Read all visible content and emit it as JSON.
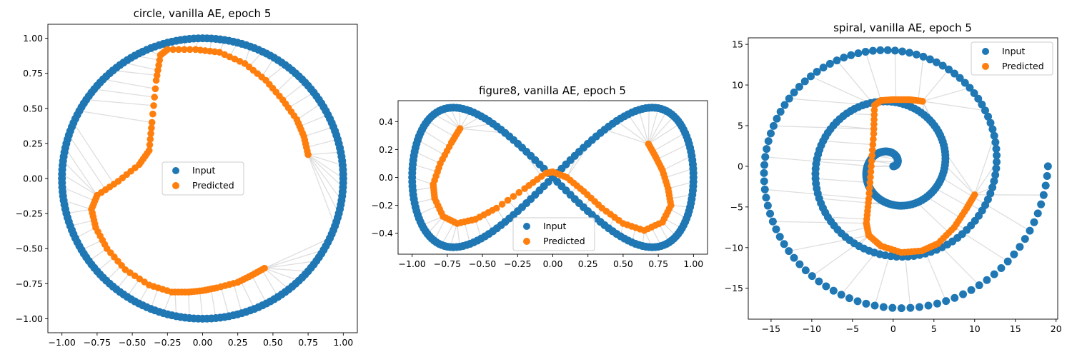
{
  "colors": {
    "input": "#1f77b4",
    "predicted": "#ff7f0e",
    "link": "#d0d0d0",
    "frame": "#000000"
  },
  "legend": {
    "input_label": "Input",
    "predicted_label": "Predicted"
  },
  "chart_data": [
    {
      "type": "scatter",
      "title": "circle, vanilla AE, epoch 5",
      "xlim": [
        -1.1,
        1.1
      ],
      "ylim": [
        -1.1,
        1.1
      ],
      "xticks": [
        -1.0,
        -0.75,
        -0.5,
        -0.25,
        0.0,
        0.25,
        0.5,
        0.75,
        1.0
      ],
      "yticks": [
        -1.0,
        -0.75,
        -0.5,
        -0.25,
        0.0,
        0.25,
        0.5,
        0.75,
        1.0
      ],
      "xtick_labels": [
        "−1.00",
        "−0.75",
        "−0.50",
        "−0.25",
        "0.00",
        "0.25",
        "0.50",
        "0.75",
        "1.00"
      ],
      "ytick_labels": [
        "−1.00",
        "−0.75",
        "−0.50",
        "−0.25",
        "0.00",
        "0.25",
        "0.50",
        "0.75",
        "1.00"
      ],
      "legend_position": "center",
      "series": [
        {
          "name": "Input",
          "shape": "circle",
          "radius": 1.0,
          "points": 200
        },
        {
          "name": "Predicted",
          "points": [
            [
              0.44,
              -0.64
            ],
            [
              0.35,
              -0.69
            ],
            [
              0.25,
              -0.74
            ],
            [
              0.1,
              -0.78
            ],
            [
              0.0,
              -0.8
            ],
            [
              -0.1,
              -0.81
            ],
            [
              -0.22,
              -0.81
            ],
            [
              -0.38,
              -0.76
            ],
            [
              -0.55,
              -0.65
            ],
            [
              -0.68,
              -0.5
            ],
            [
              -0.76,
              -0.35
            ],
            [
              -0.79,
              -0.22
            ],
            [
              -0.75,
              -0.12
            ],
            [
              -0.6,
              -0.02
            ],
            [
              -0.45,
              0.1
            ],
            [
              -0.38,
              0.2
            ],
            [
              -0.36,
              0.4
            ],
            [
              -0.33,
              0.7
            ],
            [
              -0.3,
              0.88
            ],
            [
              -0.25,
              0.92
            ],
            [
              -0.05,
              0.92
            ],
            [
              0.12,
              0.9
            ],
            [
              0.3,
              0.82
            ],
            [
              0.45,
              0.7
            ],
            [
              0.57,
              0.56
            ],
            [
              0.67,
              0.42
            ],
            [
              0.72,
              0.3
            ],
            [
              0.75,
              0.17
            ]
          ]
        }
      ]
    },
    {
      "type": "scatter",
      "title": "figure8, vanilla AE, epoch 5",
      "xlim": [
        -1.1,
        1.1
      ],
      "ylim": [
        -0.55,
        0.55
      ],
      "xticks": [
        -1.0,
        -0.75,
        -0.5,
        -0.25,
        0.0,
        0.25,
        0.5,
        0.75,
        1.0
      ],
      "yticks": [
        -0.4,
        -0.2,
        0.0,
        0.2,
        0.4
      ],
      "xtick_labels": [
        "−1.00",
        "−0.75",
        "−0.50",
        "−0.25",
        "0.00",
        "0.25",
        "0.50",
        "0.75",
        "1.00"
      ],
      "ytick_labels": [
        "−0.4",
        "−0.2",
        "0.0",
        "0.2",
        "0.4"
      ],
      "legend_position": "lower center",
      "series": [
        {
          "name": "Input",
          "shape": "figure8",
          "amplitude_x": 1.0,
          "amplitude_y": 0.5,
          "points": 200
        },
        {
          "name": "Predicted",
          "points": [
            [
              -0.66,
              0.35
            ],
            [
              -0.72,
              0.25
            ],
            [
              -0.8,
              0.1
            ],
            [
              -0.85,
              -0.05
            ],
            [
              -0.84,
              -0.15
            ],
            [
              -0.78,
              -0.28
            ],
            [
              -0.68,
              -0.33
            ],
            [
              -0.55,
              -0.3
            ],
            [
              -0.4,
              -0.22
            ],
            [
              -0.2,
              -0.08
            ],
            [
              -0.05,
              0.03
            ],
            [
              0.0,
              0.04
            ],
            [
              0.1,
              0.0
            ],
            [
              0.22,
              -0.1
            ],
            [
              0.35,
              -0.22
            ],
            [
              0.5,
              -0.33
            ],
            [
              0.65,
              -0.38
            ],
            [
              0.78,
              -0.32
            ],
            [
              0.84,
              -0.2
            ],
            [
              0.82,
              -0.08
            ],
            [
              0.78,
              0.05
            ],
            [
              0.73,
              0.15
            ],
            [
              0.68,
              0.24
            ]
          ]
        }
      ]
    },
    {
      "type": "scatter",
      "title": "spiral, vanilla AE, epoch 5",
      "xlim": [
        -17.8,
        20.2
      ],
      "ylim": [
        -18.8,
        15.8
      ],
      "xticks": [
        -15,
        -10,
        -5,
        0,
        5,
        10,
        15,
        20
      ],
      "yticks": [
        -15,
        -10,
        -5,
        0,
        5,
        10,
        15
      ],
      "xtick_labels": [
        "−15",
        "−10",
        "−5",
        "0",
        "5",
        "10",
        "15",
        "20"
      ],
      "ytick_labels": [
        "−15",
        "−10",
        "−5",
        "0",
        "5",
        "10",
        "15"
      ],
      "legend_position": "upper right",
      "series": [
        {
          "name": "Input",
          "shape": "spiral",
          "r_max": 19,
          "turns": 3,
          "points": 300
        },
        {
          "name": "Predicted",
          "points": [
            [
              3.6,
              8.0
            ],
            [
              2.0,
              8.2
            ],
            [
              0.0,
              8.2
            ],
            [
              -1.5,
              8.1
            ],
            [
              -2.3,
              7.5
            ],
            [
              -2.4,
              4.0
            ],
            [
              -2.7,
              0.0
            ],
            [
              -3.0,
              -4.0
            ],
            [
              -3.3,
              -7.0
            ],
            [
              -3.0,
              -8.5
            ],
            [
              -1.5,
              -9.8
            ],
            [
              1.0,
              -10.6
            ],
            [
              3.5,
              -10.4
            ],
            [
              5.5,
              -9.5
            ],
            [
              7.5,
              -7.5
            ],
            [
              9.0,
              -5.2
            ],
            [
              10.0,
              -3.5
            ]
          ]
        }
      ]
    }
  ]
}
